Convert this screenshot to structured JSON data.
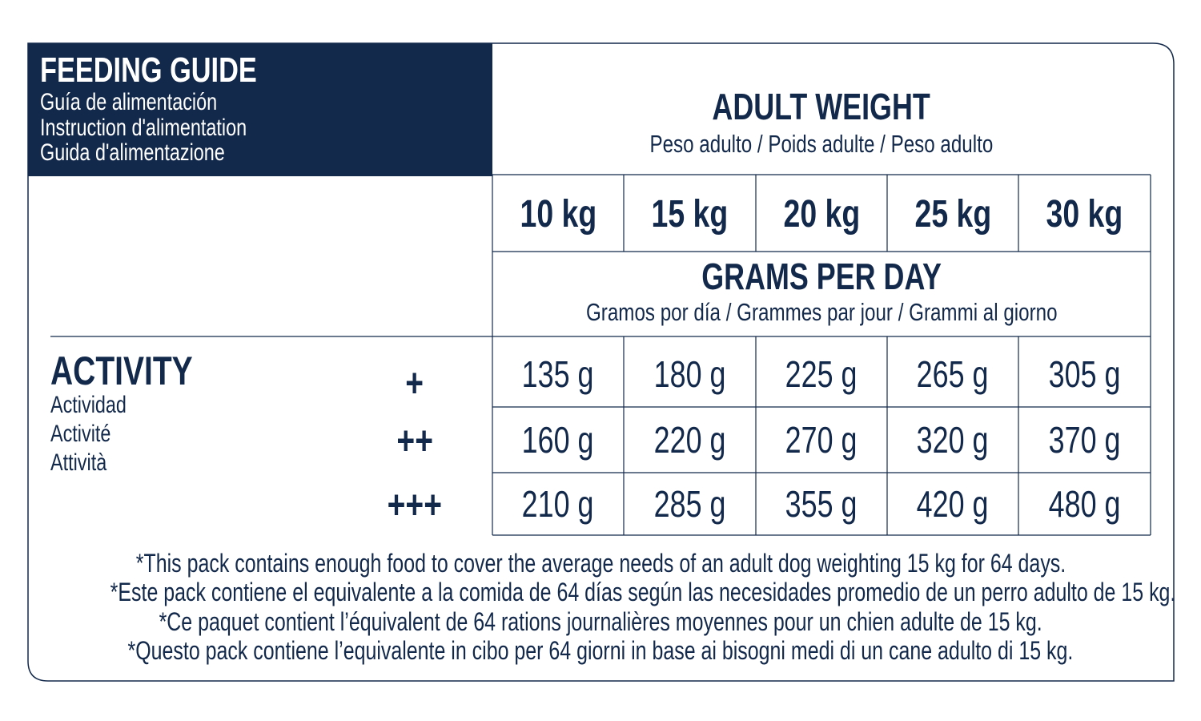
{
  "header": {
    "title": "FEEDING GUIDE",
    "subtitles": [
      "Guía de alimentación",
      "Instruction d'alimentation",
      "Guida d'alimentazione"
    ]
  },
  "weight_header": {
    "title": "ADULT WEIGHT",
    "subtitle": "Peso adulto / Poids adulte / Peso adulto"
  },
  "table": {
    "columns": [
      "10 kg",
      "15 kg",
      "20 kg",
      "25 kg",
      "30 kg"
    ],
    "unit_header": {
      "title": "GRAMS PER DAY",
      "subtitle": "Gramos por día / Grammes par jour / Grammi al giorno"
    },
    "row_labels": [
      "+",
      "++",
      "+++"
    ],
    "rows": [
      [
        "135 g",
        "180 g",
        "225 g",
        "265 g",
        "305 g"
      ],
      [
        "160 g",
        "220 g",
        "270 g",
        "320 g",
        "370 g"
      ],
      [
        "210 g",
        "285 g",
        "355 g",
        "420 g",
        "480 g"
      ]
    ]
  },
  "activity": {
    "title": "ACTIVITY",
    "subtitles": [
      "Actividad",
      "Activité",
      "Attività"
    ]
  },
  "notes": [
    "*This pack contains enough food to cover the average needs of an adult dog weighting 15 kg for 64 days.",
    "*Este pack contiene el equivalente a la comida de 64 días según las necesidades promedio de un perro adulto de 15 kg.",
    "*Ce paquet contient l’équivalent de 64 rations journalières moyennes pour un chien adulte de 15 kg.",
    "*Questo pack contiene l’equivalente in cibo per 64 giorni in base ai bisogni medi di un cane adulto di 15 kg."
  ]
}
